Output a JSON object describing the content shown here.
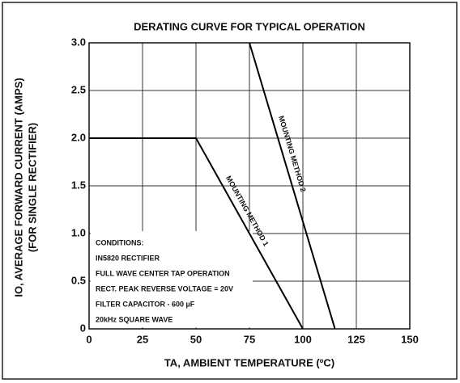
{
  "chart_data": {
    "type": "line",
    "title": "DERATING CURVE FOR TYPICAL OPERATION",
    "x_label": "TA, AMBIENT TEMPERATURE (ºC)",
    "y_label": [
      "IO, AVERAGE FORWARD CURRENT (AMPS)",
      "(FOR SINGLE RECTIFIER)"
    ],
    "series": [
      {
        "name": "MOUNTING METHOD 1",
        "color": "#000000",
        "x": [
          0,
          50,
          100
        ],
        "values": [
          2,
          2,
          0
        ]
      },
      {
        "name": "MOUNTING METHOD 2",
        "color": "#000000",
        "x": [
          75,
          115
        ],
        "values": [
          3,
          0
        ]
      }
    ],
    "xlim": [
      0,
      150
    ],
    "xticks": [
      0,
      25,
      50,
      75,
      100,
      125,
      150
    ],
    "ylim": [
      0,
      3
    ],
    "yticks": [
      0,
      0.5,
      {
        "value": 1,
        "label": "1.0"
      },
      1.5,
      {
        "value": 2,
        "label": "2.0"
      },
      2.5,
      {
        "value": 3,
        "label": "3.0"
      }
    ],
    "grid": true,
    "annotations": [
      "CONDITIONS:",
      "IN5820 RECTIFIER",
      "FULL WAVE CENTER TAP OPERATION",
      "RECT. PEAK REVERSE VOLTAGE = 20V",
      "FILTER CAPACITOR - 600 µF",
      "20kHz SQUARE WAVE"
    ]
  }
}
